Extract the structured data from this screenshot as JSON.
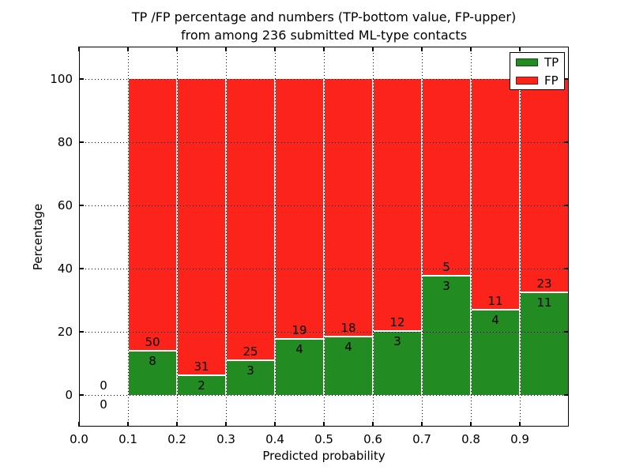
{
  "figure": {
    "title_line1": "TP /FP percentage and numbers (TP-bottom value, FP-upper)",
    "title_line2": "from among 236 submitted ML-type contacts"
  },
  "chart_data": {
    "type": "bar",
    "stacked": true,
    "title": "TP /FP percentage and numbers (TP-bottom value, FP-upper)\nfrom among 236 submitted ML-type contacts",
    "xlabel": "Predicted probability",
    "ylabel": "Percentage",
    "xlim": [
      0.0,
      1.0
    ],
    "ylim": [
      -10,
      110
    ],
    "grid": "dotted",
    "legend_position": "upper right",
    "x_tick_values": [
      0.0,
      0.1,
      0.2,
      0.3,
      0.4,
      0.5,
      0.6,
      0.7,
      0.8,
      0.9
    ],
    "x_tick_labels": [
      "0.0",
      "0.1",
      "0.2",
      "0.3",
      "0.4",
      "0.5",
      "0.6",
      "0.7",
      "0.8",
      "0.9"
    ],
    "y_tick_values": [
      0,
      20,
      40,
      60,
      80,
      100
    ],
    "y_tick_labels": [
      "0",
      "20",
      "40",
      "60",
      "80",
      "100"
    ],
    "legend": [
      {
        "label": "TP",
        "color": "#228b22"
      },
      {
        "label": "FP",
        "color": "#fb231a"
      }
    ],
    "bins": [
      {
        "x_start": 0.0,
        "x_end": 0.1,
        "tp_count": 0,
        "fp_count": 0,
        "tp_pct": 0,
        "fp_pct": 0
      },
      {
        "x_start": 0.1,
        "x_end": 0.2,
        "tp_count": 8,
        "fp_count": 50,
        "tp_pct": 13.79,
        "fp_pct": 86.21
      },
      {
        "x_start": 0.2,
        "x_end": 0.3,
        "tp_count": 2,
        "fp_count": 31,
        "tp_pct": 6.06,
        "fp_pct": 93.94
      },
      {
        "x_start": 0.3,
        "x_end": 0.4,
        "tp_count": 3,
        "fp_count": 25,
        "tp_pct": 10.71,
        "fp_pct": 89.29
      },
      {
        "x_start": 0.4,
        "x_end": 0.5,
        "tp_count": 4,
        "fp_count": 19,
        "tp_pct": 17.39,
        "fp_pct": 82.61
      },
      {
        "x_start": 0.5,
        "x_end": 0.6,
        "tp_count": 4,
        "fp_count": 18,
        "tp_pct": 18.18,
        "fp_pct": 81.82
      },
      {
        "x_start": 0.6,
        "x_end": 0.7,
        "tp_count": 3,
        "fp_count": 12,
        "tp_pct": 20.0,
        "fp_pct": 80.0
      },
      {
        "x_start": 0.7,
        "x_end": 0.8,
        "tp_count": 3,
        "fp_count": 5,
        "tp_pct": 37.5,
        "fp_pct": 62.5
      },
      {
        "x_start": 0.8,
        "x_end": 0.9,
        "tp_count": 4,
        "fp_count": 11,
        "tp_pct": 26.67,
        "fp_pct": 73.33
      },
      {
        "x_start": 0.9,
        "x_end": 1.0,
        "tp_count": 11,
        "fp_count": 23,
        "tp_pct": 32.35,
        "fp_pct": 67.65
      }
    ]
  }
}
